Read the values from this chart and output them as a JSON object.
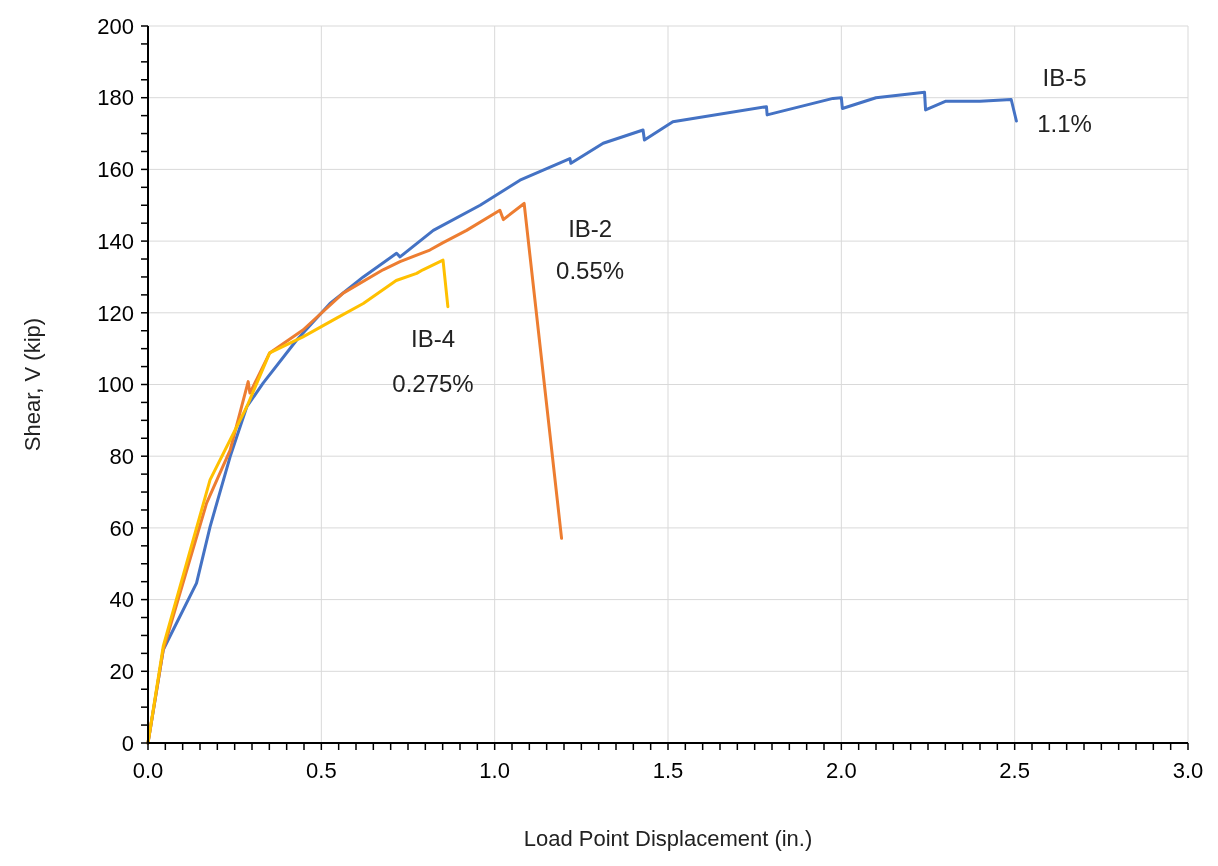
{
  "chart_data": {
    "type": "line",
    "xlabel": "Load Point Displacement (in.)",
    "ylabel": "Shear, V (kip)",
    "xlim": [
      0,
      3
    ],
    "ylim": [
      0,
      200
    ],
    "xticks": [
      {
        "value": 0,
        "label": "0.0"
      },
      {
        "value": 0.05,
        "label": null
      },
      {
        "value": 0.1,
        "label": null
      },
      {
        "value": 0.15,
        "label": null
      },
      {
        "value": 0.2,
        "label": null
      },
      {
        "value": 0.25,
        "label": null
      },
      {
        "value": 0.3,
        "label": null
      },
      {
        "value": 0.35,
        "label": null
      },
      {
        "value": 0.4,
        "label": null
      },
      {
        "value": 0.45,
        "label": null
      },
      {
        "value": 0.5,
        "label": "0.5"
      },
      {
        "value": 0.55,
        "label": null
      },
      {
        "value": 0.6,
        "label": null
      },
      {
        "value": 0.65,
        "label": null
      },
      {
        "value": 0.7,
        "label": null
      },
      {
        "value": 0.75,
        "label": null
      },
      {
        "value": 0.8,
        "label": null
      },
      {
        "value": 0.85,
        "label": null
      },
      {
        "value": 0.9,
        "label": null
      },
      {
        "value": 0.95,
        "label": null
      },
      {
        "value": 1,
        "label": "1.0"
      },
      {
        "value": 1.05,
        "label": null
      },
      {
        "value": 1.1,
        "label": null
      },
      {
        "value": 1.15,
        "label": null
      },
      {
        "value": 1.2,
        "label": null
      },
      {
        "value": 1.25,
        "label": null
      },
      {
        "value": 1.3,
        "label": null
      },
      {
        "value": 1.35,
        "label": null
      },
      {
        "value": 1.4,
        "label": null
      },
      {
        "value": 1.45,
        "label": null
      },
      {
        "value": 1.5,
        "label": "1.5"
      },
      {
        "value": 1.55,
        "label": null
      },
      {
        "value": 1.6,
        "label": null
      },
      {
        "value": 1.65,
        "label": null
      },
      {
        "value": 1.7,
        "label": null
      },
      {
        "value": 1.75,
        "label": null
      },
      {
        "value": 1.8,
        "label": null
      },
      {
        "value": 1.85,
        "label": null
      },
      {
        "value": 1.9,
        "label": null
      },
      {
        "value": 1.95,
        "label": null
      },
      {
        "value": 2,
        "label": "2.0"
      },
      {
        "value": 2.05,
        "label": null
      },
      {
        "value": 2.1,
        "label": null
      },
      {
        "value": 2.15,
        "label": null
      },
      {
        "value": 2.2,
        "label": null
      },
      {
        "value": 2.25,
        "label": null
      },
      {
        "value": 2.3,
        "label": null
      },
      {
        "value": 2.35,
        "label": null
      },
      {
        "value": 2.4,
        "label": null
      },
      {
        "value": 2.45,
        "label": null
      },
      {
        "value": 2.5,
        "label": "2.5"
      },
      {
        "value": 2.55,
        "label": null
      },
      {
        "value": 2.6,
        "label": null
      },
      {
        "value": 2.65,
        "label": null
      },
      {
        "value": 2.7,
        "label": null
      },
      {
        "value": 2.75,
        "label": null
      },
      {
        "value": 2.8,
        "label": null
      },
      {
        "value": 2.85,
        "label": null
      },
      {
        "value": 2.9,
        "label": null
      },
      {
        "value": 2.95,
        "label": null
      },
      {
        "value": 3,
        "label": "3.0"
      }
    ],
    "yticks": [
      0,
      {
        "value": 5,
        "label": null
      },
      {
        "value": 10,
        "label": null
      },
      {
        "value": 15,
        "label": null
      },
      20,
      {
        "value": 25,
        "label": null
      },
      {
        "value": 30,
        "label": null
      },
      {
        "value": 35,
        "label": null
      },
      40,
      {
        "value": 45,
        "label": null
      },
      {
        "value": 50,
        "label": null
      },
      {
        "value": 55,
        "label": null
      },
      60,
      {
        "value": 65,
        "label": null
      },
      {
        "value": 70,
        "label": null
      },
      {
        "value": 75,
        "label": null
      },
      80,
      {
        "value": 85,
        "label": null
      },
      {
        "value": 90,
        "label": null
      },
      {
        "value": 95,
        "label": null
      },
      100,
      {
        "value": 105,
        "label": null
      },
      {
        "value": 110,
        "label": null
      },
      {
        "value": 115,
        "label": null
      },
      120,
      {
        "value": 125,
        "label": null
      },
      {
        "value": 130,
        "label": null
      },
      {
        "value": 135,
        "label": null
      },
      140,
      {
        "value": 145,
        "label": null
      },
      {
        "value": 150,
        "label": null
      },
      {
        "value": 155,
        "label": null
      },
      160,
      {
        "value": 165,
        "label": null
      },
      {
        "value": 170,
        "label": null
      },
      {
        "value": 175,
        "label": null
      },
      180,
      {
        "value": 185,
        "label": null
      },
      {
        "value": 190,
        "label": null
      },
      {
        "value": 195,
        "label": null
      },
      200
    ],
    "grid": true,
    "line_style": "solid",
    "marker": "none",
    "series": [
      {
        "name": "IB-5",
        "color": "#4472c4",
        "x": [
          0,
          0.044,
          0.14,
          0.179,
          0.237,
          0.285,
          0.332,
          0.429,
          0.525,
          0.621,
          0.717,
          0.727,
          0.823,
          0.958,
          1.073,
          1.217,
          1.22,
          1.313,
          1.428,
          1.432,
          1.514,
          1.784,
          1.786,
          1.976,
          2.0,
          2.003,
          2.1,
          2.24,
          2.243,
          2.3,
          2.4,
          2.49,
          2.505
        ],
        "values": [
          0,
          26,
          44.6,
          60.3,
          79.9,
          93.8,
          100.4,
          112.4,
          122.6,
          130,
          136.6,
          135.6,
          143,
          150,
          157,
          163,
          161.7,
          167.3,
          171,
          168.2,
          173.3,
          177.5,
          175.2,
          179.8,
          180,
          177,
          180,
          181.5,
          176.6,
          179,
          179,
          179.5,
          173.5
        ]
      },
      {
        "name": "IB-2",
        "color": "#ed7d31",
        "x": [
          0,
          0.044,
          0.169,
          0.237,
          0.289,
          0.294,
          0.351,
          0.447,
          0.563,
          0.678,
          0.727,
          0.813,
          0.85,
          0.919,
          1.015,
          1.025,
          1.085,
          1.193
        ],
        "values": [
          0,
          26,
          66.9,
          81.7,
          100.8,
          97.6,
          108.8,
          115.2,
          125.5,
          132,
          134.3,
          137.5,
          139.5,
          143,
          148.6,
          146,
          150.5,
          57.1
        ]
      },
      {
        "name": "IB-4",
        "color": "#ffc000",
        "x": [
          0,
          0.044,
          0.179,
          0.285,
          0.351,
          0.447,
          0.544,
          0.621,
          0.716,
          0.775,
          0.793,
          0.851,
          0.865
        ],
        "values": [
          0,
          27,
          73.4,
          93.8,
          108.8,
          113.3,
          118.5,
          122.6,
          129,
          131,
          132,
          134.7,
          121.7
        ]
      }
    ],
    "annotations": [
      "1.1%",
      "0.55%",
      "0.275%"
    ]
  }
}
